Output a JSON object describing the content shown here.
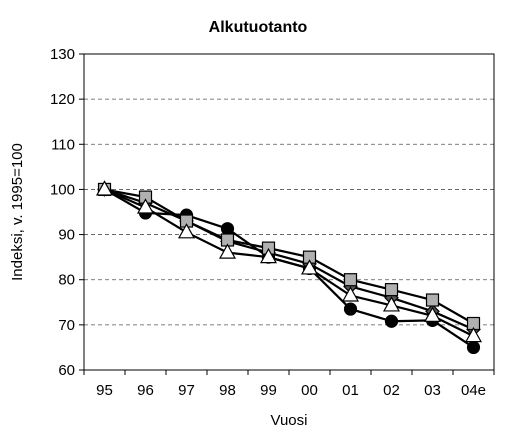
{
  "chart_data": {
    "type": "line",
    "title": "Alkutuotanto",
    "xlabel": "Vuosi",
    "ylabel": "Indeksi, v. 1995=100",
    "categories": [
      "95",
      "96",
      "97",
      "98",
      "99",
      "00",
      "01",
      "02",
      "03",
      "04e"
    ],
    "ylim": [
      60,
      130
    ],
    "yticks": [
      "60",
      "70",
      "80",
      "90",
      "100",
      "110",
      "120",
      "130"
    ],
    "grid": "horizontal dashed",
    "legend": "none",
    "series": [
      {
        "marker": "circle",
        "color": "#000000",
        "values": [
          100,
          94.8,
          94.3,
          91.3,
          85,
          82.5,
          73.5,
          70.8,
          71,
          65
        ]
      },
      {
        "marker": "square",
        "color": "#b0b0b0",
        "values": [
          100,
          98.3,
          93,
          88.8,
          87,
          85,
          80,
          77.8,
          75.5,
          70.3
        ]
      },
      {
        "marker": "triangle",
        "color": "#ffffff",
        "values": [
          100,
          96,
          90.5,
          86,
          85,
          82.5,
          76.5,
          74.3,
          72,
          67.5
        ]
      },
      {
        "marker": "diamond",
        "color": "#555555",
        "values": [
          100,
          97,
          93,
          88.5,
          86,
          83.5,
          78.5,
          76,
          73,
          69
        ]
      }
    ]
  }
}
